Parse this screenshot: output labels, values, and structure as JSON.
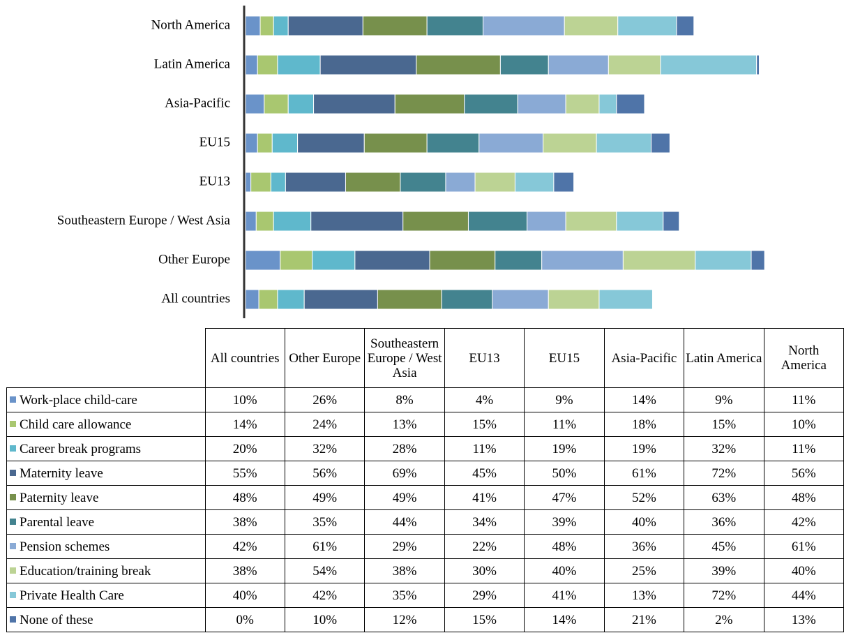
{
  "chart_data": {
    "type": "stacked-bar-horizontal",
    "categories": [
      "All countries",
      "Other Europe",
      "Southeastern Europe / West Asia",
      "EU13",
      "EU15",
      "Asia-Pacific",
      "Latin America",
      "North America"
    ],
    "series": [
      {
        "name": "Work-place child-care",
        "color": "#6a93c9",
        "values": [
          10,
          26,
          8,
          4,
          9,
          14,
          9,
          11
        ],
        "value_labels": [
          "10%",
          "26%",
          "8%",
          "4%",
          "9%",
          "14%",
          "9%",
          "11%"
        ]
      },
      {
        "name": "Child care allowance",
        "color": "#a9c770",
        "values": [
          14,
          24,
          13,
          15,
          11,
          18,
          15,
          10
        ],
        "value_labels": [
          "14%",
          "24%",
          "13%",
          "15%",
          "11%",
          "18%",
          "15%",
          "10%"
        ]
      },
      {
        "name": "Career break programs",
        "color": "#5fb8cc",
        "values": [
          20,
          32,
          28,
          11,
          19,
          19,
          32,
          11
        ],
        "value_labels": [
          "20%",
          "32%",
          "28%",
          "11%",
          "19%",
          "19%",
          "32%",
          "11%"
        ]
      },
      {
        "name": "Maternity leave",
        "color": "#4a6890",
        "values": [
          55,
          56,
          69,
          45,
          50,
          61,
          72,
          56
        ],
        "value_labels": [
          "55%",
          "56%",
          "69%",
          "45%",
          "50%",
          "61%",
          "72%",
          "56%"
        ]
      },
      {
        "name": "Paternity leave",
        "color": "#77904c",
        "values": [
          48,
          49,
          49,
          41,
          47,
          52,
          63,
          48
        ],
        "value_labels": [
          "48%",
          "49%",
          "49%",
          "41%",
          "47%",
          "52%",
          "63%",
          "48%"
        ]
      },
      {
        "name": "Parental leave",
        "color": "#43838f",
        "values": [
          38,
          35,
          44,
          34,
          39,
          40,
          36,
          42
        ],
        "value_labels": [
          "38%",
          "35%",
          "44%",
          "34%",
          "39%",
          "40%",
          "36%",
          "42%"
        ]
      },
      {
        "name": "Pension schemes",
        "color": "#8aaad5",
        "values": [
          42,
          61,
          29,
          22,
          48,
          36,
          45,
          61
        ],
        "value_labels": [
          "42%",
          "61%",
          "29%",
          "22%",
          "48%",
          "36%",
          "45%",
          "61%"
        ]
      },
      {
        "name": "Education/training break",
        "color": "#bcd394",
        "values": [
          38,
          54,
          38,
          30,
          40,
          25,
          39,
          40
        ],
        "value_labels": [
          "38%",
          "54%",
          "38%",
          "30%",
          "40%",
          "25%",
          "39%",
          "40%"
        ]
      },
      {
        "name": "Private Health Care",
        "color": "#86c8d8",
        "values": [
          40,
          42,
          35,
          29,
          41,
          13,
          72,
          44
        ],
        "value_labels": [
          "40%",
          "42%",
          "35%",
          "29%",
          "41%",
          "13%",
          "72%",
          "44%"
        ]
      },
      {
        "name": "None of these",
        "color": "#4f74a8",
        "values": [
          0,
          10,
          12,
          15,
          14,
          21,
          2,
          13
        ],
        "value_labels": [
          "0%",
          "10%",
          "12%",
          "15%",
          "14%",
          "21%",
          "2%",
          "13%"
        ]
      }
    ]
  }
}
